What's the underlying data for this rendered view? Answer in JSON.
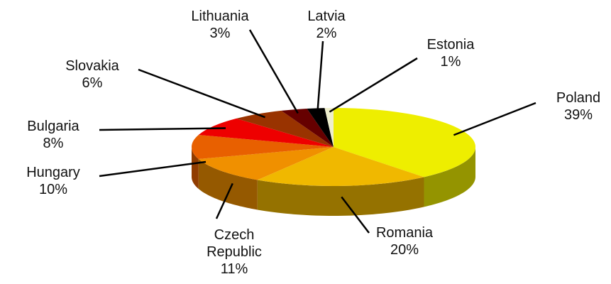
{
  "chart_data": {
    "type": "pie3d",
    "categories": [
      "Poland",
      "Romania",
      "Czech Republic",
      "Hungary",
      "Bulgaria",
      "Slovakia",
      "Lithuania",
      "Latvia",
      "Estonia"
    ],
    "values": [
      39,
      20,
      11,
      10,
      8,
      6,
      3,
      2,
      1
    ],
    "value_labels": [
      "39%",
      "20%",
      "11%",
      "10%",
      "8%",
      "6%",
      "3%",
      "2%",
      "1%"
    ],
    "colors": [
      "#eeee00",
      "#f0b800",
      "#f09000",
      "#e86000",
      "#ee0000",
      "#993300",
      "#660000",
      "#000000",
      "#eeeecc"
    ]
  }
}
